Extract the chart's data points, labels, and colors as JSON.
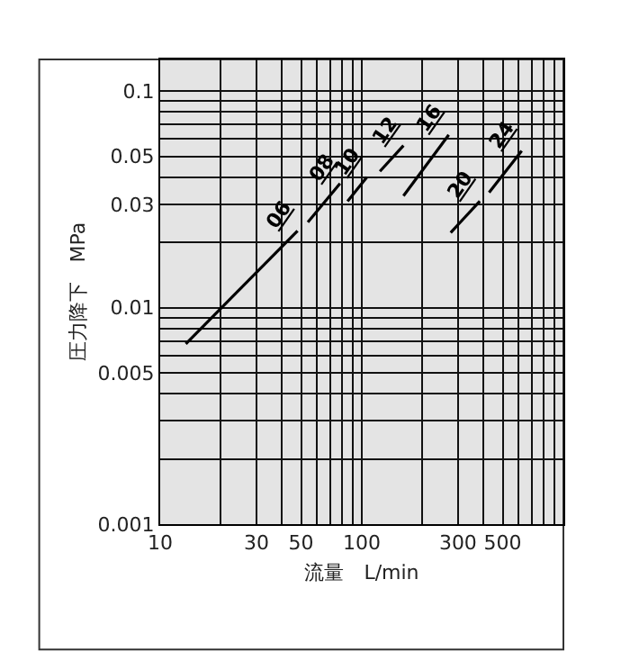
{
  "chart_data": {
    "type": "line",
    "xlabel": "流量　L/min",
    "ylabel": "圧力降下　MPa",
    "log": "xy",
    "grid": true,
    "legend": false,
    "line_style": "solid",
    "marker": "none",
    "xlim": [
      10,
      1000
    ],
    "ylim": [
      0.001,
      0.14
    ],
    "xticks": [
      10,
      {
        "value": 20,
        "label": null
      },
      30,
      {
        "value": 40,
        "label": null
      },
      50,
      {
        "value": 60,
        "label": null
      },
      {
        "value": 70,
        "label": null
      },
      {
        "value": 80,
        "label": null
      },
      {
        "value": 90,
        "label": null
      },
      100,
      {
        "value": 200,
        "label": null
      },
      300,
      {
        "value": 400,
        "label": null
      },
      500,
      {
        "value": 600,
        "label": null
      },
      {
        "value": 700,
        "label": null
      },
      {
        "value": 800,
        "label": null
      },
      {
        "value": 900,
        "label": null
      },
      {
        "value": 1000,
        "label": null
      }
    ],
    "yticks": [
      0.001,
      {
        "value": 0.002,
        "label": null
      },
      {
        "value": 0.003,
        "label": null
      },
      {
        "value": 0.004,
        "label": null
      },
      0.005,
      {
        "value": 0.006,
        "label": null
      },
      {
        "value": 0.007,
        "label": null
      },
      {
        "value": 0.008,
        "label": null
      },
      {
        "value": 0.009,
        "label": null
      },
      0.01,
      {
        "value": 0.02,
        "label": null
      },
      0.03,
      {
        "value": 0.04,
        "label": null
      },
      0.05,
      {
        "value": 0.06,
        "label": null
      },
      {
        "value": 0.07,
        "label": null
      },
      {
        "value": 0.08,
        "label": null
      },
      {
        "value": 0.09,
        "label": null
      },
      0.1
    ],
    "series": [
      {
        "name": "06",
        "color": "#000000",
        "x": [
          13.4,
          48
        ],
        "values": [
          0.0068,
          0.0226
        ]
      },
      {
        "name": "08",
        "color": "#000000",
        "x": [
          54,
          78
        ],
        "values": [
          0.0248,
          0.0374
        ]
      },
      {
        "name": "10",
        "color": "#000000",
        "x": [
          85,
          106
        ],
        "values": [
          0.031,
          0.04
        ]
      },
      {
        "name": "12",
        "color": "#000000",
        "x": [
          123,
          161
        ],
        "values": [
          0.0426,
          0.056
        ]
      },
      {
        "name": "16",
        "color": "#000000",
        "x": [
          161,
          270
        ],
        "values": [
          0.0328,
          0.0628
        ]
      },
      {
        "name": "20",
        "color": "#000000",
        "x": [
          276,
          385
        ],
        "values": [
          0.0222,
          0.031
        ]
      },
      {
        "name": "24",
        "color": "#000000",
        "x": [
          428,
          621
        ],
        "values": [
          0.034,
          0.053
        ]
      }
    ]
  }
}
